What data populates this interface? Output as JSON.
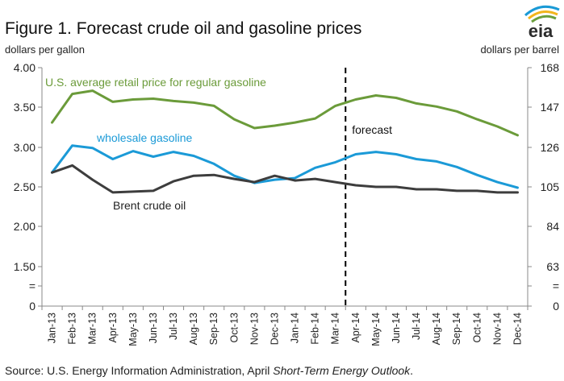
{
  "title": "Figure 1. Forecast crude oil and gasoline prices",
  "left_unit": "dollars per gallon",
  "right_unit": "dollars per barrel",
  "logo": {
    "text": "eia",
    "colors": [
      "#1a9ad6",
      "#f2b51c",
      "#6b9f3c"
    ]
  },
  "source": {
    "prefix": "Source: U.S. Energy Information Administration, April ",
    "italic": "Short-Term Energy Outlook",
    "suffix": "."
  },
  "chart_data": {
    "type": "line",
    "x": [
      "Jan-13",
      "Feb-13",
      "Mar-13",
      "Apr-13",
      "May-13",
      "Jun-13",
      "Jul-13",
      "Aug-13",
      "Sep-13",
      "Oct-13",
      "Nov-13",
      "Dec-13",
      "Jan-14",
      "Feb-14",
      "Mar-14",
      "Apr-14",
      "May-14",
      "Jun-14",
      "Jul-14",
      "Aug-14",
      "Sep-14",
      "Oct-14",
      "Nov-14",
      "Dec-14"
    ],
    "y_left_ticks": [
      "4.00",
      "3.50",
      "3.00",
      "2.50",
      "2.00",
      "1.50",
      "=",
      "0"
    ],
    "y_right_ticks": [
      "168",
      "147",
      "126",
      "105",
      "84",
      "63",
      "=",
      "0"
    ],
    "grid": false,
    "forecast_marker": {
      "after": "Mar-14",
      "label": "forecast"
    },
    "series": [
      {
        "name": "U.S. average retail price for regular gasoline",
        "color": "#6b9b3a",
        "axis": "left",
        "values": [
          3.31,
          3.67,
          3.71,
          3.57,
          3.6,
          3.61,
          3.58,
          3.56,
          3.52,
          3.35,
          3.24,
          3.27,
          3.31,
          3.36,
          3.52,
          3.6,
          3.65,
          3.62,
          3.55,
          3.51,
          3.45,
          3.35,
          3.26,
          3.15
        ]
      },
      {
        "name": "wholesale gasoline",
        "color": "#1b9ad7",
        "axis": "left",
        "values": [
          2.68,
          3.02,
          2.99,
          2.85,
          2.95,
          2.88,
          2.94,
          2.89,
          2.79,
          2.64,
          2.55,
          2.59,
          2.61,
          2.74,
          2.81,
          2.91,
          2.94,
          2.91,
          2.85,
          2.82,
          2.75,
          2.65,
          2.56,
          2.49
        ]
      },
      {
        "name": "Brent crude oil",
        "color": "#3d3d3d",
        "axis": "left",
        "values": [
          2.68,
          2.77,
          2.59,
          2.43,
          2.44,
          2.45,
          2.57,
          2.64,
          2.65,
          2.6,
          2.56,
          2.64,
          2.58,
          2.6,
          2.56,
          2.52,
          2.5,
          2.5,
          2.47,
          2.47,
          2.45,
          2.45,
          2.43,
          2.43
        ]
      }
    ]
  }
}
